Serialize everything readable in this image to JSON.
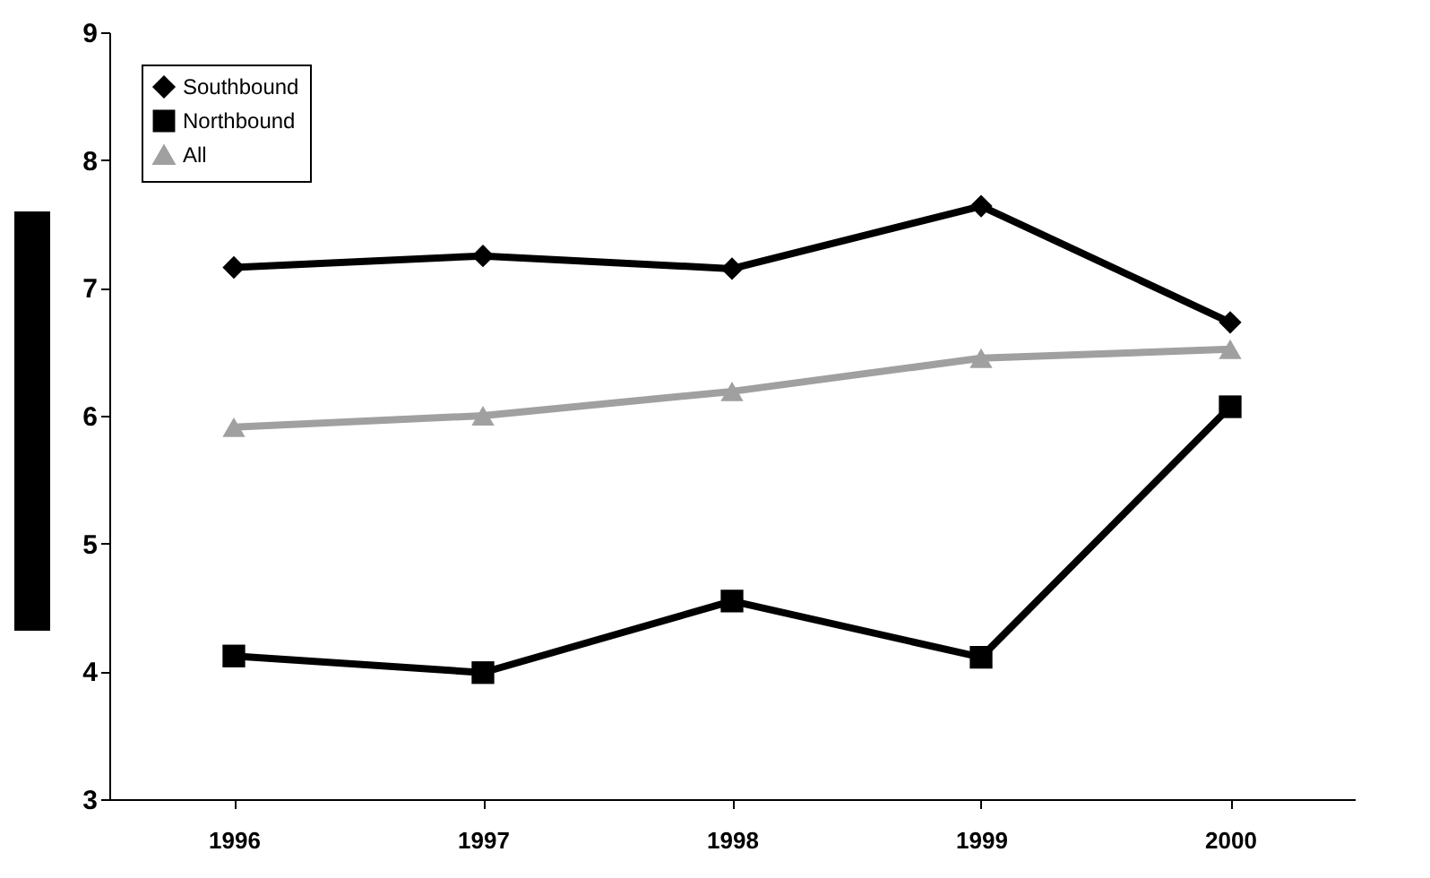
{
  "chart_data": {
    "type": "line",
    "categories": [
      "1996",
      "1997",
      "1998",
      "1999",
      "2000"
    ],
    "series": [
      {
        "name": "Southbound",
        "color": "#000000",
        "marker": "diamond",
        "values": [
          7.16,
          7.25,
          7.15,
          7.64,
          6.73
        ]
      },
      {
        "name": "Northbound",
        "color": "#000000",
        "marker": "square",
        "values": [
          4.12,
          3.99,
          4.55,
          4.11,
          6.07
        ]
      },
      {
        "name": "All",
        "color": "#a0a0a0",
        "marker": "triangle",
        "values": [
          5.91,
          6.0,
          6.19,
          6.45,
          6.52
        ]
      }
    ],
    "ylim": [
      3,
      9
    ],
    "yticks": [
      3,
      4,
      5,
      6,
      7,
      8,
      9
    ],
    "grid": false,
    "legend": "top left",
    "line_style": "solid"
  }
}
